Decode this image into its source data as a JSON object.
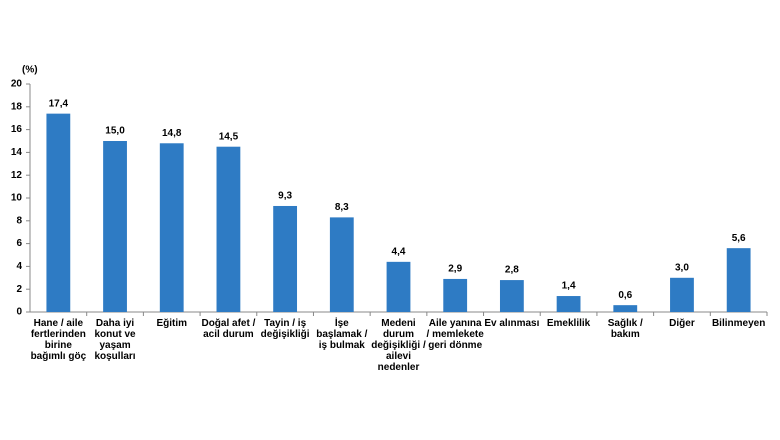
{
  "chart_data": {
    "type": "bar",
    "ylabel": "(%)",
    "categories": [
      "Hane / aile fertlerinden birine bağımlı göç",
      "Daha iyi konut ve yaşam koşulları",
      "Eğitim",
      "Doğal afet / acil durum",
      "Tayin / iş değişikliği",
      "İşe başlamak / iş bulmak",
      "Medeni durum değişikliği / ailevi nedenler",
      "Aile yanına / memlekete geri dönme",
      "Ev alınması",
      "Emeklilik",
      "Sağlık / bakım",
      "Diğer",
      "Bilinmeyen"
    ],
    "values": [
      17.4,
      15.0,
      14.8,
      14.5,
      9.3,
      8.3,
      4.4,
      2.9,
      2.8,
      1.4,
      0.6,
      3.0,
      5.6
    ],
    "value_labels": [
      "17,4",
      "15,0",
      "14,8",
      "14,5",
      "9,3",
      "8,3",
      "4,4",
      "2,9",
      "2,8",
      "1,4",
      "0,6",
      "3,0",
      "5,6"
    ],
    "color": "#2e7bc4",
    "ylim": [
      0,
      20
    ],
    "yticks": [
      0,
      2,
      4,
      6,
      8,
      10,
      12,
      14,
      16,
      18,
      20
    ],
    "grid": false
  }
}
